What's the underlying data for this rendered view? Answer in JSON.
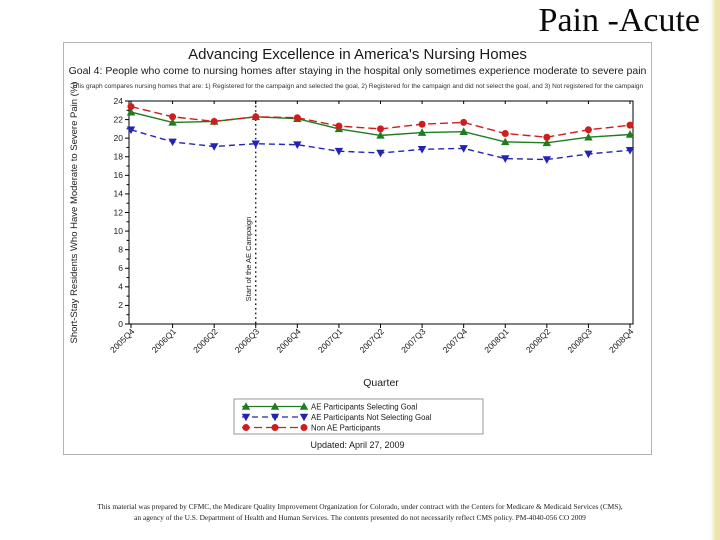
{
  "slide": {
    "title": "Pain -Acute",
    "disclaimer_line1": "This material was prepared by CFMC, the Medicare Quality Improvement Organization for Colorado, under contract with the Centers for Medicare & Medicaid Services (CMS),",
    "disclaimer_line2": "an agency of the U.S. Department of Health and Human Services. The contents presented do not necessarily reflect CMS policy. PM-4040-056 CO 2009"
  },
  "chart": {
    "title": "Advancing Excellence in America's Nursing Homes",
    "subtitle": "Goal 4: People who come to nursing homes after staying in the hospital only sometimes experience moderate to severe pain",
    "note": "This graph compares nursing homes that are: 1) Registered for the campaign and selected the goal, 2) Registered for the campaign and did not select the goal, and 3) Not registered for the campaign",
    "updated": "Updated: April 27, 2009"
  },
  "chart_data": {
    "type": "line",
    "title": "Advancing Excellence in America's Nursing Homes",
    "xlabel": "Quarter",
    "ylabel": "Short-Stay Residents Who Have Moderate to Severe Pain (%)",
    "ylim": [
      0,
      24
    ],
    "ytick_step": 2,
    "grid": false,
    "legend_position": "bottom",
    "categories": [
      "2005Q4",
      "2006Q1",
      "2006Q2",
      "2006Q3",
      "2006Q4",
      "2007Q1",
      "2007Q2",
      "2007Q3",
      "2007Q4",
      "2008Q1",
      "2008Q2",
      "2008Q3",
      "2008Q4"
    ],
    "series": [
      {
        "name": "AE Participants Selecting Goal",
        "color": "#1e7d1e",
        "marker": "triangle-up",
        "line": "solid",
        "values": [
          22.8,
          21.7,
          21.8,
          22.3,
          22.1,
          21.0,
          20.3,
          20.6,
          20.7,
          19.6,
          19.5,
          20.1,
          20.4
        ]
      },
      {
        "name": "AE Participants Not Selecting Goal",
        "color": "#2424b4",
        "marker": "triangle-down",
        "line": "dashed",
        "values": [
          20.9,
          19.6,
          19.1,
          19.4,
          19.3,
          18.6,
          18.4,
          18.8,
          18.9,
          17.8,
          17.7,
          18.3,
          18.7
        ]
      },
      {
        "name": "Non AE Participants",
        "color": "#cf1d1d",
        "marker": "circle",
        "line": "longdash",
        "values": [
          23.4,
          22.3,
          21.8,
          22.3,
          22.2,
          21.3,
          21.0,
          21.5,
          21.7,
          20.5,
          20.1,
          20.9,
          21.4
        ]
      }
    ],
    "annotation": {
      "label": "Start of the AE Campaign",
      "x_index": 3,
      "line_style": "dotted"
    }
  }
}
